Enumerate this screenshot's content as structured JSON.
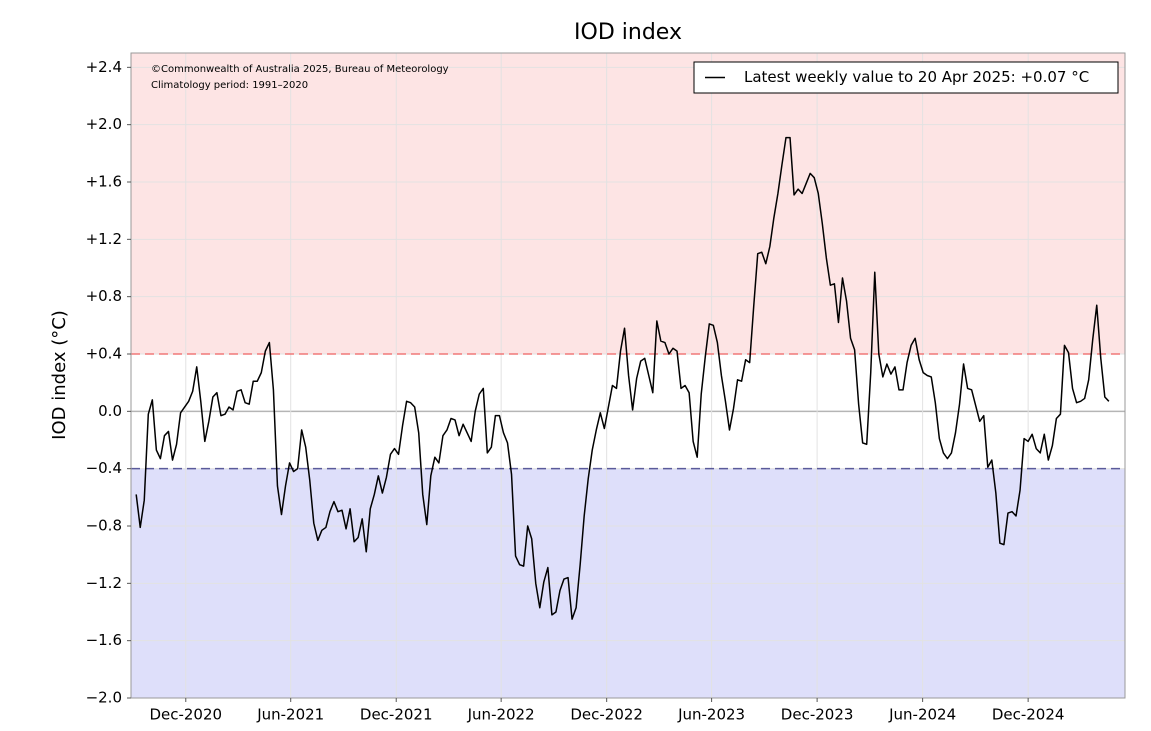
{
  "chart_data": {
    "type": "line",
    "title": "IOD index",
    "y_label": "IOD index (°C)",
    "annotations": [
      "©Commonwealth of Australia 2025, Bureau of Meteorology",
      "Climatology period: 1991–2020"
    ],
    "legend": "upper right",
    "grid": true,
    "xlim": [
      "2020-08-28",
      "2025-05-18"
    ],
    "xticks": [
      {
        "value": "2020-12-01",
        "label": "Dec-2020"
      },
      {
        "value": "2021-06-01",
        "label": "Jun-2021"
      },
      {
        "value": "2021-12-01",
        "label": "Dec-2021"
      },
      {
        "value": "2022-06-01",
        "label": "Jun-2022"
      },
      {
        "value": "2022-12-01",
        "label": "Dec-2022"
      },
      {
        "value": "2023-06-01",
        "label": "Jun-2023"
      },
      {
        "value": "2023-12-01",
        "label": "Dec-2023"
      },
      {
        "value": "2024-06-01",
        "label": "Jun-2024"
      },
      {
        "value": "2024-12-01",
        "label": "Dec-2024"
      }
    ],
    "ylim": [
      -2.0,
      2.5
    ],
    "yticks": [
      {
        "value": 2.4,
        "label": "+2.4"
      },
      {
        "value": 2.0,
        "label": "+2.0"
      },
      {
        "value": 1.6,
        "label": "+1.6"
      },
      {
        "value": 1.2,
        "label": "+1.2"
      },
      {
        "value": 0.8,
        "label": "+0.8"
      },
      {
        "value": 0.4,
        "label": "+0.4"
      },
      {
        "value": 0.0,
        "label": "0.0"
      },
      {
        "value": -0.4,
        "label": "−0.4"
      },
      {
        "value": -0.8,
        "label": "−0.8"
      },
      {
        "value": -1.2,
        "label": "−1.2"
      },
      {
        "value": -1.6,
        "label": "−1.6"
      },
      {
        "value": -2.0,
        "label": "−2.0"
      }
    ],
    "thresholds": [
      {
        "value": 0.4,
        "color": "#f07878",
        "fill": "#fde4e4"
      },
      {
        "value": -0.4,
        "color": "#5a5a9a",
        "fill": "#dedffa"
      }
    ],
    "x": [
      "2020-09-06",
      "2020-09-13",
      "2020-09-20",
      "2020-09-27",
      "2020-10-04",
      "2020-10-11",
      "2020-10-18",
      "2020-10-25",
      "2020-11-01",
      "2020-11-08",
      "2020-11-15",
      "2020-11-22",
      "2020-11-29",
      "2020-12-06",
      "2020-12-13",
      "2020-12-20",
      "2020-12-27",
      "2021-01-03",
      "2021-01-10",
      "2021-01-17",
      "2021-01-24",
      "2021-01-31",
      "2021-02-07",
      "2021-02-14",
      "2021-02-21",
      "2021-02-28",
      "2021-03-07",
      "2021-03-14",
      "2021-03-21",
      "2021-03-28",
      "2021-04-04",
      "2021-04-11",
      "2021-04-18",
      "2021-04-25",
      "2021-05-02",
      "2021-05-09",
      "2021-05-16",
      "2021-05-23",
      "2021-05-30",
      "2021-06-06",
      "2021-06-13",
      "2021-06-20",
      "2021-06-27",
      "2021-07-04",
      "2021-07-11",
      "2021-07-18",
      "2021-07-25",
      "2021-08-01",
      "2021-08-08",
      "2021-08-15",
      "2021-08-22",
      "2021-08-29",
      "2021-09-05",
      "2021-09-12",
      "2021-09-19",
      "2021-09-26",
      "2021-10-03",
      "2021-10-10",
      "2021-10-17",
      "2021-10-24",
      "2021-10-31",
      "2021-11-07",
      "2021-11-14",
      "2021-11-21",
      "2021-11-28",
      "2021-12-05",
      "2021-12-12",
      "2021-12-19",
      "2021-12-26",
      "2022-01-02",
      "2022-01-09",
      "2022-01-16",
      "2022-01-23",
      "2022-01-30",
      "2022-02-06",
      "2022-02-13",
      "2022-02-20",
      "2022-02-27",
      "2022-03-06",
      "2022-03-13",
      "2022-03-20",
      "2022-03-27",
      "2022-04-03",
      "2022-04-10",
      "2022-04-17",
      "2022-04-24",
      "2022-05-01",
      "2022-05-08",
      "2022-05-15",
      "2022-05-22",
      "2022-05-29",
      "2022-06-05",
      "2022-06-12",
      "2022-06-19",
      "2022-06-26",
      "2022-07-03",
      "2022-07-10",
      "2022-07-17",
      "2022-07-24",
      "2022-07-31",
      "2022-08-07",
      "2022-08-14",
      "2022-08-21",
      "2022-08-28",
      "2022-09-04",
      "2022-09-11",
      "2022-09-18",
      "2022-09-25",
      "2022-10-02",
      "2022-10-09",
      "2022-10-16",
      "2022-10-23",
      "2022-10-30",
      "2022-11-06",
      "2022-11-13",
      "2022-11-20",
      "2022-11-27",
      "2022-12-04",
      "2022-12-11",
      "2022-12-18",
      "2022-12-25",
      "2023-01-01",
      "2023-01-08",
      "2023-01-15",
      "2023-01-22",
      "2023-01-29",
      "2023-02-05",
      "2023-02-12",
      "2023-02-19",
      "2023-02-26",
      "2023-03-05",
      "2023-03-12",
      "2023-03-19",
      "2023-03-26",
      "2023-04-02",
      "2023-04-09",
      "2023-04-16",
      "2023-04-23",
      "2023-04-30",
      "2023-05-07",
      "2023-05-14",
      "2023-05-21",
      "2023-05-28",
      "2023-06-04",
      "2023-06-11",
      "2023-06-18",
      "2023-06-25",
      "2023-07-02",
      "2023-07-09",
      "2023-07-16",
      "2023-07-23",
      "2023-07-30",
      "2023-08-06",
      "2023-08-13",
      "2023-08-20",
      "2023-08-27",
      "2023-09-03",
      "2023-09-10",
      "2023-09-17",
      "2023-09-24",
      "2023-10-01",
      "2023-10-08",
      "2023-10-15",
      "2023-10-22",
      "2023-10-29",
      "2023-11-05",
      "2023-11-12",
      "2023-11-19",
      "2023-11-26",
      "2023-12-03",
      "2023-12-10",
      "2023-12-17",
      "2023-12-24",
      "2023-12-31",
      "2024-01-07",
      "2024-01-14",
      "2024-01-21",
      "2024-01-28",
      "2024-02-04",
      "2024-02-11",
      "2024-02-18",
      "2024-02-25",
      "2024-03-03",
      "2024-03-10",
      "2024-03-17",
      "2024-03-24",
      "2024-03-31",
      "2024-04-07",
      "2024-04-14",
      "2024-04-21",
      "2024-04-28",
      "2024-05-05",
      "2024-05-12",
      "2024-05-19",
      "2024-05-26",
      "2024-06-02",
      "2024-06-09",
      "2024-06-16",
      "2024-06-23",
      "2024-06-30",
      "2024-07-07",
      "2024-07-14",
      "2024-07-21",
      "2024-07-28",
      "2024-08-04",
      "2024-08-11",
      "2024-08-18",
      "2024-08-25",
      "2024-09-01",
      "2024-09-08",
      "2024-09-15",
      "2024-09-22",
      "2024-09-29",
      "2024-10-06",
      "2024-10-13",
      "2024-10-20",
      "2024-10-27",
      "2024-11-03",
      "2024-11-10",
      "2024-11-17",
      "2024-11-24",
      "2024-12-01",
      "2024-12-08",
      "2024-12-15",
      "2024-12-22",
      "2024-12-29",
      "2025-01-05",
      "2025-01-12",
      "2025-01-19",
      "2025-01-26",
      "2025-02-02",
      "2025-02-09",
      "2025-02-16",
      "2025-02-23",
      "2025-03-02",
      "2025-03-09",
      "2025-03-16",
      "2025-03-23",
      "2025-03-30",
      "2025-04-06",
      "2025-04-13",
      "2025-04-20"
    ],
    "series": [
      {
        "name": "Latest weekly value to 20 Apr 2025: +0.07 °C",
        "color": "#000000",
        "values": [
          -0.58,
          -0.81,
          -0.62,
          -0.02,
          0.08,
          -0.27,
          -0.33,
          -0.17,
          -0.14,
          -0.34,
          -0.23,
          -0.01,
          0.03,
          0.07,
          0.14,
          0.31,
          0.07,
          -0.21,
          -0.07,
          0.1,
          0.13,
          -0.03,
          -0.02,
          0.03,
          0.01,
          0.14,
          0.15,
          0.06,
          0.05,
          0.21,
          0.21,
          0.27,
          0.42,
          0.48,
          0.15,
          -0.52,
          -0.72,
          -0.52,
          -0.36,
          -0.42,
          -0.4,
          -0.13,
          -0.25,
          -0.48,
          -0.78,
          -0.9,
          -0.83,
          -0.81,
          -0.7,
          -0.63,
          -0.7,
          -0.69,
          -0.82,
          -0.68,
          -0.91,
          -0.88,
          -0.75,
          -0.98,
          -0.68,
          -0.58,
          -0.45,
          -0.57,
          -0.46,
          -0.3,
          -0.26,
          -0.3,
          -0.1,
          0.07,
          0.06,
          0.03,
          -0.15,
          -0.58,
          -0.79,
          -0.45,
          -0.32,
          -0.36,
          -0.17,
          -0.13,
          -0.05,
          -0.06,
          -0.17,
          -0.09,
          -0.15,
          -0.21,
          0.0,
          0.12,
          0.16,
          -0.29,
          -0.25,
          -0.03,
          -0.03,
          -0.15,
          -0.22,
          -0.44,
          -1.01,
          -1.07,
          -1.08,
          -0.8,
          -0.89,
          -1.2,
          -1.37,
          -1.19,
          -1.09,
          -1.42,
          -1.4,
          -1.25,
          -1.17,
          -1.16,
          -1.45,
          -1.37,
          -1.07,
          -0.73,
          -0.47,
          -0.27,
          -0.13,
          -0.01,
          -0.12,
          0.03,
          0.18,
          0.16,
          0.42,
          0.58,
          0.25,
          0.01,
          0.23,
          0.35,
          0.37,
          0.25,
          0.13,
          0.63,
          0.49,
          0.48,
          0.4,
          0.44,
          0.42,
          0.16,
          0.18,
          0.13,
          -0.21,
          -0.32,
          0.12,
          0.38,
          0.61,
          0.6,
          0.48,
          0.25,
          0.07,
          -0.13,
          0.02,
          0.22,
          0.21,
          0.36,
          0.34,
          0.73,
          1.1,
          1.11,
          1.03,
          1.15,
          1.35,
          1.52,
          1.72,
          1.91,
          1.91,
          1.51,
          1.55,
          1.52,
          1.59,
          1.66,
          1.63,
          1.52,
          1.31,
          1.07,
          0.88,
          0.89,
          0.62,
          0.93,
          0.77,
          0.51,
          0.43,
          0.05,
          -0.22,
          -0.23,
          0.27,
          0.97,
          0.4,
          0.24,
          0.33,
          0.26,
          0.31,
          0.15,
          0.15,
          0.34,
          0.46,
          0.51,
          0.36,
          0.27,
          0.25,
          0.24,
          0.06,
          -0.19,
          -0.29,
          -0.33,
          -0.29,
          -0.15,
          0.05,
          0.33,
          0.16,
          0.15,
          0.04,
          -0.07,
          -0.03,
          -0.39,
          -0.34,
          -0.57,
          -0.92,
          -0.93,
          -0.71,
          -0.7,
          -0.73,
          -0.55,
          -0.19,
          -0.21,
          -0.16,
          -0.26,
          -0.29,
          -0.16,
          -0.34,
          -0.24,
          -0.05,
          -0.02,
          0.46,
          0.41,
          0.16,
          0.06,
          0.07,
          0.09,
          0.22,
          0.5,
          0.74,
          0.37,
          0.1,
          0.07
        ]
      }
    ]
  }
}
